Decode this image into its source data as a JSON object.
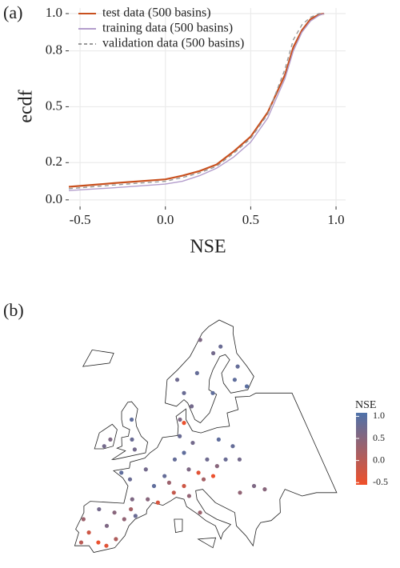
{
  "chart_data": [
    {
      "type": "line",
      "panel_label": "(a)",
      "x_label": "NSE",
      "y_label": "ecdf",
      "x": [
        -0.566,
        -0.3,
        0.0,
        0.1,
        0.2,
        0.3,
        0.4,
        0.5,
        0.6,
        0.7,
        0.75,
        0.8,
        0.85,
        0.9,
        0.93
      ],
      "series": [
        {
          "name": "test data (500 basins)",
          "color": "#c8501e",
          "dash": false,
          "values": [
            0.07,
            0.09,
            0.11,
            0.13,
            0.155,
            0.19,
            0.26,
            0.34,
            0.47,
            0.67,
            0.82,
            0.91,
            0.97,
            0.995,
            1.0
          ]
        },
        {
          "name": "training data (500 basins)",
          "color": "#b39dcc",
          "dash": false,
          "values": [
            0.05,
            0.065,
            0.085,
            0.1,
            0.13,
            0.17,
            0.23,
            0.31,
            0.44,
            0.65,
            0.8,
            0.9,
            0.96,
            0.99,
            1.0
          ]
        },
        {
          "name": "validation data (500 basins)",
          "color": "#999999",
          "dash": true,
          "values": [
            0.06,
            0.08,
            0.1,
            0.12,
            0.145,
            0.18,
            0.25,
            0.33,
            0.46,
            0.7,
            0.86,
            0.94,
            0.98,
            1.0,
            1.0
          ]
        }
      ],
      "xlim": [
        -0.566,
        1.056
      ],
      "ylim": [
        -0.035,
        1.03
      ],
      "xticks": [
        {
          "value": -0.5,
          "label": "-0.5"
        },
        {
          "value": 0,
          "label": "0.0"
        },
        {
          "value": 0.5,
          "label": "0.5"
        },
        {
          "value": 1,
          "label": "1.0"
        }
      ],
      "yticks": [
        {
          "value": 0,
          "label": "0.0"
        },
        0.2,
        0.5,
        0.8,
        {
          "value": 1,
          "label": "1.0"
        }
      ],
      "grid": true,
      "legend": "top-left"
    },
    {
      "type": "map",
      "panel_label": "(b)",
      "legend_title": "NSE",
      "lon": [
        -8.5,
        -7,
        -4,
        -3,
        -5,
        -2,
        -1,
        0,
        -6,
        -3.5,
        -8,
        1,
        -1,
        2,
        4,
        0,
        3,
        6,
        -3,
        5,
        -2,
        -1,
        -3,
        -7,
        -8,
        8,
        10,
        12,
        9,
        11,
        13,
        15,
        17,
        14,
        16,
        19,
        21,
        22,
        18,
        7,
        10,
        11,
        13,
        8,
        9,
        10,
        10,
        14,
        18,
        20,
        25,
        27,
        28,
        12,
        16,
        8,
        23,
        24,
        21,
        26
      ],
      "lat": [
        41,
        39,
        40,
        42,
        37.5,
        38,
        41,
        42.5,
        42.5,
        37,
        37.5,
        41.5,
        47,
        48.5,
        46,
        44,
        44,
        47.5,
        48,
        43.5,
        53,
        51.5,
        56,
        53,
        52,
        50,
        51,
        52.5,
        53.5,
        48.5,
        48,
        50,
        49,
        47,
        47.5,
        50,
        52,
        50,
        53,
        46.5,
        46,
        44.5,
        42,
        45,
        56,
        55.5,
        60,
        63,
        60,
        66,
        62,
        64,
        61,
        58,
        68,
        62,
        67,
        46,
        45,
        45.5
      ],
      "values": [
        0.3,
        -0.2,
        0.6,
        0.5,
        -0.5,
        0.1,
        0.4,
        0.2,
        0.7,
        -0.4,
        0.0,
        0.8,
        0.8,
        0.7,
        0.9,
        0.6,
        0.5,
        0.85,
        0.9,
        -0.3,
        0.8,
        0.7,
        0.9,
        0.6,
        0.7,
        0.85,
        0.9,
        0.7,
        0.8,
        0.6,
        -0.4,
        0.75,
        0.5,
        0.2,
        -0.5,
        0.8,
        0.85,
        0.7,
        0.9,
        0.3,
        -0.2,
        0.4,
        0.3,
        -0.1,
        0.6,
        -0.5,
        0.8,
        0.85,
        0.9,
        0.7,
        0.9,
        0.85,
        0.95,
        0.7,
        0.6,
        0.75,
        0.8,
        0.6,
        0.4,
        0.5
      ],
      "clim": [
        -0.55,
        1.08
      ],
      "cticks": [
        {
          "value": 1,
          "label": "1.0"
        },
        0.5,
        {
          "value": 0,
          "label": "0.0"
        },
        -0.5
      ],
      "colors": [
        "#f0502a",
        "#4e72aa"
      ]
    }
  ]
}
